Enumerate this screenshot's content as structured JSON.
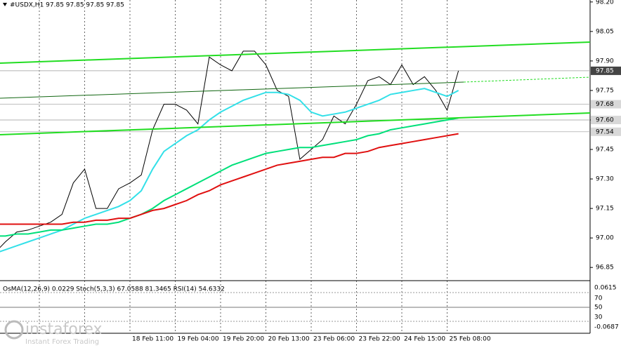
{
  "header": {
    "title": "#USDX,H1  97.85 97.85 97.85 97.85"
  },
  "chart_data": {
    "type": "line",
    "categories": [
      null,
      null,
      null,
      null,
      null,
      null,
      null,
      null,
      null,
      null,
      null,
      null,
      "18 Feb 11:00",
      null,
      null,
      null,
      "19 Feb 04:00",
      null,
      null,
      null,
      "19 Feb 20:00",
      null,
      null,
      null,
      "20 Feb 13:00",
      null,
      null,
      null,
      "23 Feb 06:00",
      null,
      null,
      null,
      "23 Feb 22:00",
      null,
      null,
      null,
      "24 Feb 15:00",
      null,
      null,
      null,
      "25 Feb 08:00",
      null
    ],
    "series": [
      {
        "color": "#000000",
        "values": [
          96.92,
          96.98,
          97.03,
          97.04,
          97.06,
          97.08,
          97.12,
          97.28,
          97.35,
          97.15,
          97.15,
          97.25,
          97.28,
          97.32,
          97.55,
          97.68,
          97.68,
          97.65,
          97.58,
          97.92,
          97.88,
          97.85,
          97.95,
          97.95,
          97.88,
          97.75,
          97.72,
          97.4,
          97.45,
          97.5,
          97.62,
          97.58,
          97.68,
          97.8,
          97.82,
          97.78,
          97.88,
          97.78,
          97.82,
          97.75,
          97.65,
          97.85
        ]
      },
      {
        "color": "#33e0e8",
        "values": [
          96.92,
          96.94,
          96.96,
          96.98,
          97.0,
          97.02,
          97.04,
          97.07,
          97.1,
          97.12,
          97.14,
          97.16,
          97.19,
          97.24,
          97.35,
          97.44,
          97.48,
          97.52,
          97.55,
          97.6,
          97.64,
          97.67,
          97.7,
          97.72,
          97.74,
          97.74,
          97.73,
          97.7,
          97.64,
          97.62,
          97.63,
          97.64,
          97.66,
          97.68,
          97.7,
          97.73,
          97.74,
          97.75,
          97.76,
          97.74,
          97.72,
          97.75
        ]
      },
      {
        "color": "#00e07a",
        "values": [
          97.01,
          97.01,
          97.02,
          97.02,
          97.03,
          97.04,
          97.04,
          97.05,
          97.06,
          97.07,
          97.07,
          97.08,
          97.1,
          97.12,
          97.15,
          97.19,
          97.22,
          97.25,
          97.28,
          97.31,
          97.34,
          97.37,
          97.39,
          97.41,
          97.43,
          97.44,
          97.45,
          97.46,
          97.46,
          97.47,
          97.48,
          97.49,
          97.5,
          97.52,
          97.53,
          97.55,
          97.56,
          97.57,
          97.58,
          97.59,
          97.6,
          97.61
        ]
      },
      {
        "color": "#e01010",
        "values": [
          97.07,
          97.07,
          97.07,
          97.07,
          97.07,
          97.07,
          97.07,
          97.08,
          97.08,
          97.09,
          97.09,
          97.1,
          97.1,
          97.12,
          97.14,
          97.15,
          97.17,
          97.19,
          97.22,
          97.24,
          97.27,
          97.29,
          97.31,
          97.33,
          97.35,
          97.37,
          97.38,
          97.39,
          97.4,
          97.41,
          97.41,
          97.43,
          97.43,
          97.44,
          97.46,
          97.47,
          97.48,
          97.49,
          97.5,
          97.51,
          97.52,
          97.53
        ]
      }
    ],
    "ylim": [
      96.79,
      98.21
    ],
    "yticks": [
      {
        "value": 98.2,
        "label": "98.20"
      },
      98.05,
      {
        "value": 97.9,
        "label": "97.90"
      },
      97.75,
      {
        "value": 97.6,
        "label": "97.60"
      },
      97.45,
      {
        "value": 97.3,
        "label": "97.30"
      },
      97.15,
      {
        "value": 97.0,
        "label": "97.00"
      },
      96.85
    ],
    "price_labels": [
      97.85,
      97.68,
      {
        "value": 97.6,
        "label": "97.60"
      },
      97.54
    ],
    "xgrid": true
  },
  "indicator": {
    "label": "OsMA(12,26,9) 0.0229  Stoch(5,3,3) 67.0588 81.3465  RSI(14) 54.6332",
    "scale_labels": [
      "0.0615",
      "70",
      "50",
      "30",
      "-0.0687"
    ]
  },
  "logo": {
    "name": "instaforex",
    "tagline": "Instant Forex Trading"
  }
}
